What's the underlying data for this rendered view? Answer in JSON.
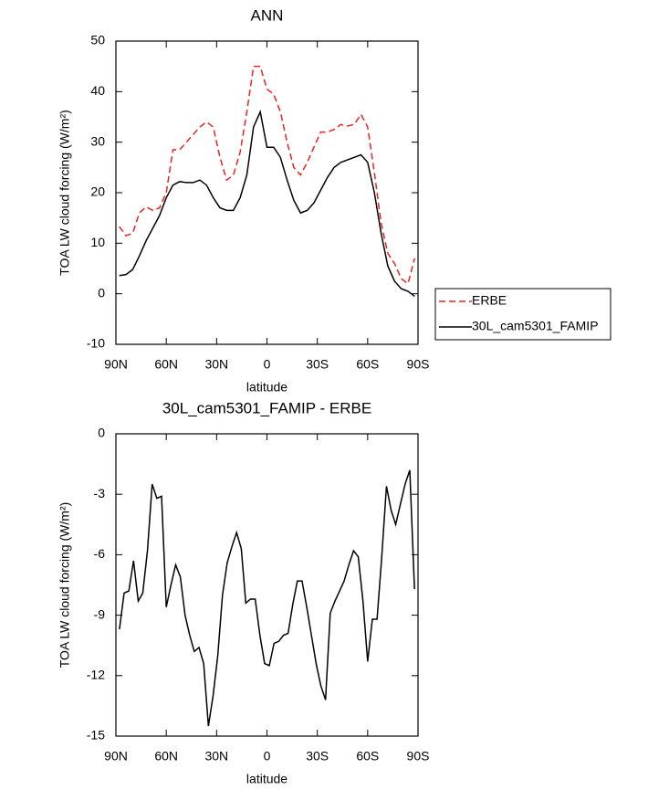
{
  "chart_data": [
    {
      "type": "line",
      "title": "ANN",
      "xlabel": "latitude",
      "ylabel": "TOA LW cloud forcing (W/m²)",
      "x": [
        88,
        84,
        80,
        76,
        72,
        68,
        64,
        60,
        56,
        52,
        48,
        44,
        40,
        36,
        32,
        28,
        24,
        20,
        16,
        12,
        8,
        4,
        0,
        -4,
        -8,
        -12,
        -16,
        -20,
        -24,
        -28,
        -32,
        -36,
        -40,
        -44,
        -48,
        -52,
        -56,
        -60,
        -64,
        -68,
        -72,
        -76,
        -80,
        -84,
        -88
      ],
      "series": [
        {
          "name": "ERBE",
          "color": "#e8231f",
          "linestyle": "dashed",
          "values": [
            13.3,
            11.5,
            12,
            16,
            17.2,
            16.5,
            17,
            20,
            28.5,
            28.5,
            30,
            31.5,
            33,
            34,
            33,
            27,
            22.5,
            23.5,
            28,
            36,
            45,
            45,
            40.5,
            39.5,
            36,
            30,
            25,
            23.5,
            26,
            29,
            32,
            32,
            32.5,
            33.5,
            33.2,
            33.5,
            35.5,
            33,
            24,
            14,
            8,
            6,
            3,
            2,
            7
          ]
        },
        {
          "name": "30L_cam5301_FAMIP",
          "color": "#000000",
          "linestyle": "solid",
          "values": [
            3.6,
            3.8,
            4.8,
            7.5,
            10.5,
            13,
            15.5,
            19,
            21.5,
            22.2,
            22,
            22,
            22.5,
            21.5,
            19,
            17,
            16.5,
            16.5,
            19,
            23.5,
            33,
            36,
            29,
            29,
            27,
            22.5,
            18.5,
            16,
            16.5,
            18,
            20.5,
            23,
            25,
            26,
            26.5,
            27,
            27.5,
            26,
            20,
            12,
            5.5,
            2.5,
            1,
            0.5,
            -0.5
          ]
        }
      ],
      "xlim": [
        90,
        -90
      ],
      "xticks": [
        {
          "value": 90,
          "label": "90N"
        },
        {
          "value": 60,
          "label": "60N"
        },
        {
          "value": 30,
          "label": "30N"
        },
        0,
        {
          "value": -30,
          "label": "30S"
        },
        {
          "value": -60,
          "label": "60S"
        },
        {
          "value": -90,
          "label": "90S"
        }
      ],
      "ylim": [
        -10,
        50
      ],
      "yticks": [
        -10,
        0,
        10,
        20,
        30,
        40,
        50
      ],
      "legend": "right"
    },
    {
      "type": "line",
      "title": "30L_cam5301_FAMIP - ERBE",
      "xlabel": "latitude",
      "ylabel": "TOA LW cloud forcing (W/m²)",
      "x": [
        87.9,
        85.1,
        82.3,
        79.5,
        76.7,
        74.0,
        71.2,
        68.4,
        65.6,
        62.8,
        60.0,
        57.2,
        54.4,
        51.6,
        48.8,
        46.0,
        43.3,
        40.5,
        37.7,
        34.9,
        32.1,
        29.3,
        26.5,
        23.7,
        20.9,
        18.1,
        15.3,
        12.6,
        9.8,
        7.0,
        4.2,
        1.4,
        -1.4,
        -4.2,
        -7.0,
        -9.8,
        -12.6,
        -15.3,
        -18.1,
        -20.9,
        -23.7,
        -26.5,
        -29.3,
        -32.1,
        -34.9,
        -37.7,
        -40.5,
        -43.3,
        -46.0,
        -48.8,
        -51.6,
        -54.4,
        -57.2,
        -60.0,
        -62.8,
        -65.6,
        -68.4,
        -71.2,
        -74.0,
        -76.7,
        -79.5,
        -82.3,
        -85.1,
        -87.9
      ],
      "values": [
        -9.7,
        -7.9,
        -7.8,
        -6.3,
        -8.3,
        -7.9,
        -5.8,
        -2.5,
        -3.2,
        -3.1,
        -8.6,
        -7.5,
        -6.5,
        -7.1,
        -9.0,
        -10.0,
        -10.8,
        -10.6,
        -11.4,
        -14.5,
        -13.0,
        -11.0,
        -8.0,
        -6.4,
        -5.6,
        -4.9,
        -5.7,
        -8.4,
        -8.2,
        -8.2,
        -10.0,
        -11.4,
        -11.5,
        -10.4,
        -10.3,
        -10.0,
        -9.9,
        -8.5,
        -7.3,
        -7.3,
        -8.6,
        -10.0,
        -11.4,
        -12.5,
        -13.2,
        -8.9,
        -8.3,
        -7.8,
        -7.3,
        -6.5,
        -5.8,
        -6.1,
        -8.3,
        -11.3,
        -9.2,
        -9.2,
        -6.1,
        -2.6,
        -3.8,
        -4.5,
        -3.5,
        -2.5,
        -1.8,
        -7.7
      ],
      "color": "#000000",
      "xlim": [
        90,
        -90
      ],
      "xticks": [
        {
          "value": 90,
          "label": "90N"
        },
        {
          "value": 60,
          "label": "60N"
        },
        {
          "value": 30,
          "label": "30N"
        },
        0,
        {
          "value": -30,
          "label": "30S"
        },
        {
          "value": -60,
          "label": "60S"
        },
        {
          "value": -90,
          "label": "90S"
        }
      ],
      "ylim": [
        -15,
        0
      ],
      "yticks": [
        -15,
        -12,
        -9,
        -6,
        -3,
        0
      ]
    }
  ]
}
